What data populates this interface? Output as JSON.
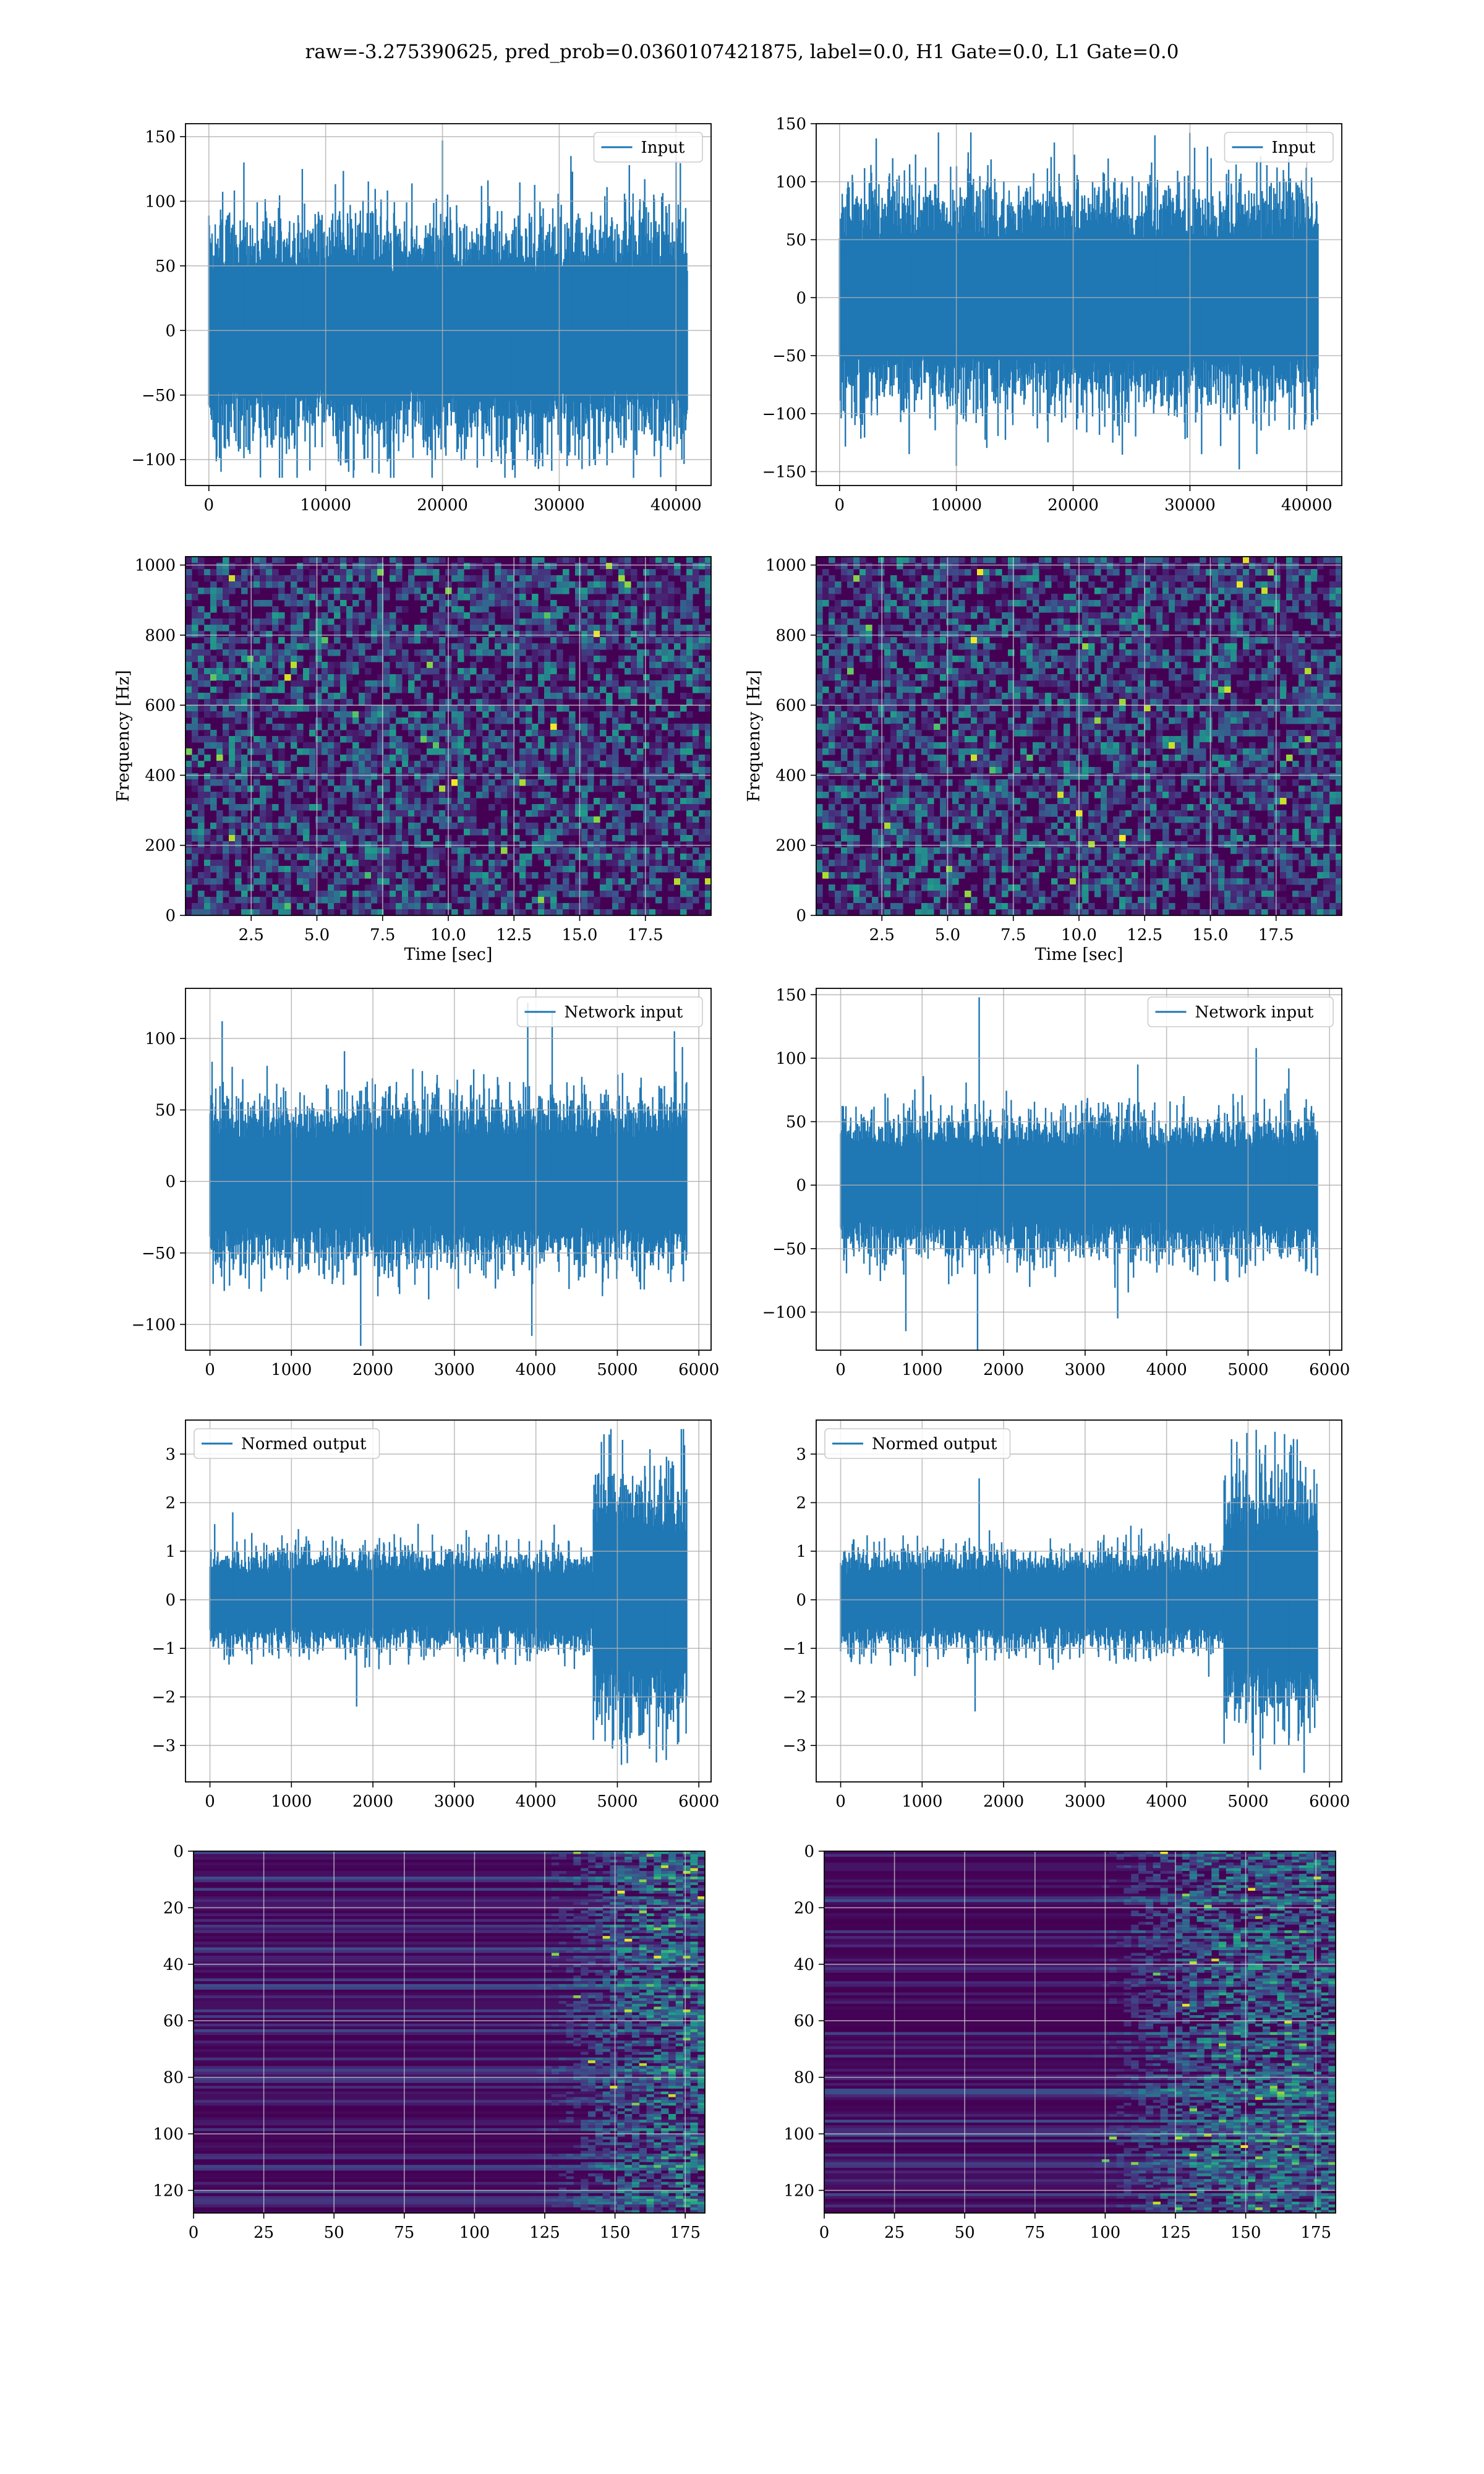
{
  "suptitle": "raw=-3.275390625, pred_prob=0.0360107421875, label=0.0, H1 Gate=0.0, L1 Gate=0.0",
  "colors": {
    "line": "#1f77b4",
    "grid": "#b0b0b0",
    "viridis_dark": "#440154",
    "viridis_mid": "#3b528b",
    "viridis_teal": "#21918c",
    "viridis_green": "#5ec962"
  },
  "chart_data": [
    {
      "id": "input-h1",
      "type": "line",
      "series": [
        {
          "name": "Input",
          "x_range": [
            0,
            40960
          ],
          "amplitude_typical": 60,
          "spikes": [
            [
              3000,
              130
            ],
            [
              8000,
              125
            ],
            [
              14000,
              -110
            ],
            [
              20000,
              147
            ],
            [
              26000,
              -108
            ],
            [
              31000,
              135
            ],
            [
              36000,
              128
            ],
            [
              40500,
              -100
            ]
          ]
        }
      ],
      "xlim": [
        -2000,
        43000
      ],
      "ylim": [
        -120,
        160
      ],
      "xticks": [
        0,
        10000,
        20000,
        30000,
        40000
      ],
      "xtick_labels": [
        "0",
        "10000",
        "20000",
        "30000",
        "40000"
      ],
      "yticks": [
        -100,
        -50,
        0,
        50,
        100,
        150
      ],
      "ytick_labels": [
        "−100",
        "−50",
        "0",
        "50",
        "100",
        "150"
      ],
      "legend": "top-right",
      "grid": true
    },
    {
      "id": "input-l1",
      "type": "line",
      "series": [
        {
          "name": "Input",
          "x_range": [
            0,
            40960
          ],
          "amplitude_typical": 65,
          "spikes": [
            [
              10000,
              -145
            ],
            [
              27000,
              140
            ],
            [
              31000,
              -135
            ],
            [
              23000,
              120
            ],
            [
              6000,
              115
            ],
            [
              38000,
              110
            ]
          ]
        }
      ],
      "xlim": [
        -2000,
        43000
      ],
      "ylim": [
        -162,
        150
      ],
      "xticks": [
        0,
        10000,
        20000,
        30000,
        40000
      ],
      "xtick_labels": [
        "0",
        "10000",
        "20000",
        "30000",
        "40000"
      ],
      "yticks": [
        -150,
        -100,
        -50,
        0,
        50,
        100,
        150
      ],
      "ytick_labels": [
        "−150",
        "−100",
        "−50",
        "0",
        "50",
        "100",
        "150"
      ],
      "legend": "top-right",
      "grid": true
    },
    {
      "id": "spec-h1",
      "type": "heatmap",
      "colormap": "viridis",
      "xlim": [
        0,
        20
      ],
      "ylim": [
        0,
        1024
      ],
      "xticks": [
        2.5,
        5.0,
        7.5,
        10.0,
        12.5,
        15.0,
        17.5
      ],
      "xtick_labels": [
        "2.5",
        "5.0",
        "7.5",
        "10.0",
        "12.5",
        "15.0",
        "17.5"
      ],
      "yticks": [
        0,
        200,
        400,
        600,
        800,
        1000
      ],
      "ytick_labels": [
        "0",
        "200",
        "400",
        "600",
        "800",
        "1000"
      ],
      "xlabel": "Time [sec]",
      "ylabel": "Frequency [Hz]",
      "grid": true
    },
    {
      "id": "spec-l1",
      "type": "heatmap",
      "colormap": "viridis",
      "xlim": [
        0,
        20
      ],
      "ylim": [
        0,
        1024
      ],
      "xticks": [
        2.5,
        5.0,
        7.5,
        10.0,
        12.5,
        15.0,
        17.5
      ],
      "xtick_labels": [
        "2.5",
        "5.0",
        "7.5",
        "10.0",
        "12.5",
        "15.0",
        "17.5"
      ],
      "yticks": [
        0,
        200,
        400,
        600,
        800,
        1000
      ],
      "ytick_labels": [
        "0",
        "200",
        "400",
        "600",
        "800",
        "1000"
      ],
      "xlabel": "Time [sec]",
      "ylabel": "Frequency [Hz]",
      "grid": true
    },
    {
      "id": "netin-h1",
      "type": "line",
      "series": [
        {
          "name": "Network input",
          "x_range": [
            0,
            5850
          ],
          "amplitude_typical": 40,
          "spikes": [
            [
              150,
              112
            ],
            [
              1850,
              -115
            ],
            [
              3900,
              125
            ],
            [
              4200,
              118
            ],
            [
              3950,
              -108
            ],
            [
              5700,
              105
            ]
          ]
        }
      ],
      "xlim": [
        -300,
        6150
      ],
      "ylim": [
        -118,
        135
      ],
      "xticks": [
        0,
        1000,
        2000,
        3000,
        4000,
        5000,
        6000
      ],
      "xtick_labels": [
        "0",
        "1000",
        "2000",
        "3000",
        "4000",
        "5000",
        "6000"
      ],
      "yticks": [
        -100,
        -50,
        0,
        50,
        100
      ],
      "ytick_labels": [
        "−100",
        "−50",
        "0",
        "50",
        "100"
      ],
      "legend": "top-right",
      "grid": true
    },
    {
      "id": "netin-l1",
      "type": "line",
      "series": [
        {
          "name": "Network input",
          "x_range": [
            0,
            5850
          ],
          "amplitude_typical": 38,
          "spikes": [
            [
              1700,
              148
            ],
            [
              1680,
              -130
            ],
            [
              800,
              -115
            ],
            [
              5100,
              108
            ],
            [
              3400,
              -105
            ],
            [
              5500,
              92
            ]
          ]
        }
      ],
      "xlim": [
        -300,
        6150
      ],
      "ylim": [
        -130,
        155
      ],
      "xticks": [
        0,
        1000,
        2000,
        3000,
        4000,
        5000,
        6000
      ],
      "xtick_labels": [
        "0",
        "1000",
        "2000",
        "3000",
        "4000",
        "5000",
        "6000"
      ],
      "yticks": [
        -100,
        -50,
        0,
        50,
        100,
        150
      ],
      "ytick_labels": [
        "−100",
        "−50",
        "0",
        "50",
        "100",
        "150"
      ],
      "legend": "top-right",
      "grid": true
    },
    {
      "id": "norm-h1",
      "type": "line",
      "series": [
        {
          "name": "Normed output",
          "x_range": [
            0,
            5850
          ],
          "amplitude_typical": 0.7,
          "burst_range": [
            4700,
            5850
          ],
          "burst_amplitude": 1.8,
          "spikes": [
            [
              4900,
              3.4
            ],
            [
              5050,
              -3.4
            ],
            [
              5600,
              -3.3
            ],
            [
              5400,
              3.1
            ],
            [
              1800,
              -2.2
            ],
            [
              280,
              1.8
            ]
          ]
        }
      ],
      "xlim": [
        -300,
        6150
      ],
      "ylim": [
        -3.75,
        3.7
      ],
      "xticks": [
        0,
        1000,
        2000,
        3000,
        4000,
        5000,
        6000
      ],
      "xtick_labels": [
        "0",
        "1000",
        "2000",
        "3000",
        "4000",
        "5000",
        "6000"
      ],
      "yticks": [
        -3,
        -2,
        -1,
        0,
        1,
        2,
        3
      ],
      "ytick_labels": [
        "−3",
        "−2",
        "−1",
        "0",
        "1",
        "2",
        "3"
      ],
      "legend": "top-left",
      "grid": true
    },
    {
      "id": "norm-l1",
      "type": "line",
      "series": [
        {
          "name": "Normed output",
          "x_range": [
            0,
            5850
          ],
          "amplitude_typical": 0.7,
          "burst_range": [
            4700,
            5850
          ],
          "burst_amplitude": 1.7,
          "spikes": [
            [
              5100,
              3.5
            ],
            [
              5150,
              -3.5
            ],
            [
              4850,
              2.6
            ],
            [
              5500,
              -3.0
            ],
            [
              1700,
              2.5
            ],
            [
              1650,
              -2.3
            ]
          ]
        }
      ],
      "xlim": [
        -300,
        6150
      ],
      "ylim": [
        -3.75,
        3.7
      ],
      "xticks": [
        0,
        1000,
        2000,
        3000,
        4000,
        5000,
        6000
      ],
      "xtick_labels": [
        "0",
        "1000",
        "2000",
        "3000",
        "4000",
        "5000",
        "6000"
      ],
      "yticks": [
        -3,
        -2,
        -1,
        0,
        1,
        2,
        3
      ],
      "ytick_labels": [
        "−3",
        "−2",
        "−1",
        "0",
        "1",
        "2",
        "3"
      ],
      "legend": "top-left",
      "grid": true
    },
    {
      "id": "feat-h1",
      "type": "heatmap",
      "colormap": "viridis",
      "xlim": [
        0,
        182
      ],
      "ylim": [
        128,
        0
      ],
      "activity_onset_x": 120,
      "xticks": [
        0,
        25,
        50,
        75,
        100,
        125,
        150,
        175
      ],
      "xtick_labels": [
        "0",
        "25",
        "50",
        "75",
        "100",
        "125",
        "150",
        "175"
      ],
      "yticks": [
        0,
        20,
        40,
        60,
        80,
        100,
        120
      ],
      "ytick_labels": [
        "0",
        "20",
        "40",
        "60",
        "80",
        "100",
        "120"
      ],
      "grid": true
    },
    {
      "id": "feat-l1",
      "type": "heatmap",
      "colormap": "viridis",
      "xlim": [
        0,
        182
      ],
      "ylim": [
        128,
        0
      ],
      "activity_onset_x": 95,
      "xticks": [
        0,
        25,
        50,
        75,
        100,
        125,
        150,
        175
      ],
      "xtick_labels": [
        "0",
        "25",
        "50",
        "75",
        "100",
        "125",
        "150",
        "175"
      ],
      "yticks": [
        0,
        20,
        40,
        60,
        80,
        100,
        120
      ],
      "ytick_labels": [
        "0",
        "20",
        "40",
        "60",
        "80",
        "100",
        "120"
      ],
      "grid": true
    }
  ]
}
